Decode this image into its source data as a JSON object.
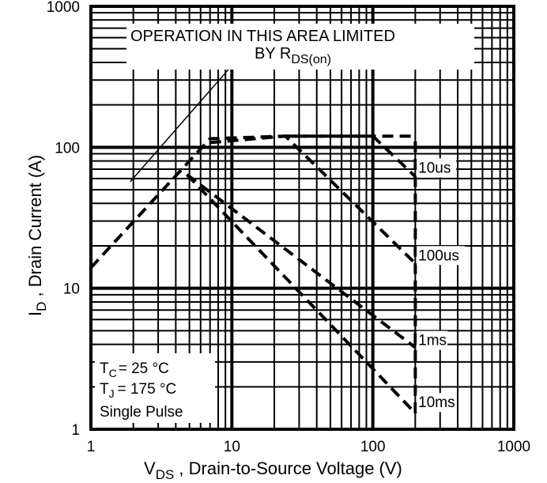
{
  "chart_data": {
    "type": "line",
    "title": "",
    "x_axis": {
      "label_main": "V",
      "label_sub": "DS",
      "label_rest": " , Drain-to-Source Voltage (V)",
      "scale": "log",
      "range": [
        1,
        1000
      ],
      "ticks": [
        "1",
        "10",
        "100",
        "1000"
      ]
    },
    "y_axis": {
      "label_main": "I",
      "label_sub": "D",
      "label_rest": " , Drain Current (A)",
      "scale": "log",
      "range": [
        1,
        1000
      ],
      "ticks": [
        "1",
        "10",
        "100",
        "1000"
      ]
    },
    "grid": true,
    "rds_limit_note": {
      "line1": "OPERATION IN THIS AREA LIMITED",
      "line2_main": "BY R",
      "line2_sub": "DS(on)"
    },
    "conditions": {
      "tc_main": "T",
      "tc_sub": "C",
      "tc_rest": "= 25 °C",
      "tj_main": "T",
      "tj_sub": "J",
      "tj_rest": "= 175 °C",
      "pulse": "Single Pulse"
    },
    "series": [
      {
        "name": "10us",
        "x": [
          1,
          7,
          24,
          200
        ],
        "y": [
          14,
          115,
          120,
          120
        ]
      },
      {
        "name": "10us",
        "x": [
          24,
          100,
          200
        ],
        "y": [
          120,
          120,
          62
        ]
      },
      {
        "name": "100us",
        "x": [
          7,
          24,
          200
        ],
        "y": [
          108,
          120,
          15
        ]
      },
      {
        "name": "1ms",
        "x": [
          4.8,
          200
        ],
        "y": [
          64,
          3.8
        ]
      },
      {
        "name": "10ms",
        "x": [
          4.8,
          200
        ],
        "y": [
          64,
          1.3
        ]
      },
      {
        "name": "",
        "x": [
          200,
          200
        ],
        "y": [
          1.3,
          120
        ]
      }
    ],
    "curve_labels": [
      {
        "text": "10us",
        "x": 210,
        "y": 67
      },
      {
        "text": "100us",
        "x": 210,
        "y": 16
      },
      {
        "text": "1ms",
        "x": 210,
        "y": 4.0
      },
      {
        "text": "10ms",
        "x": 210,
        "y": 1.45
      }
    ],
    "rds_pointer": {
      "x": [
        1.9,
        10
      ],
      "y": [
        57,
        380
      ]
    },
    "colors": {
      "background": "#ffffff",
      "ink": "#000000"
    }
  }
}
